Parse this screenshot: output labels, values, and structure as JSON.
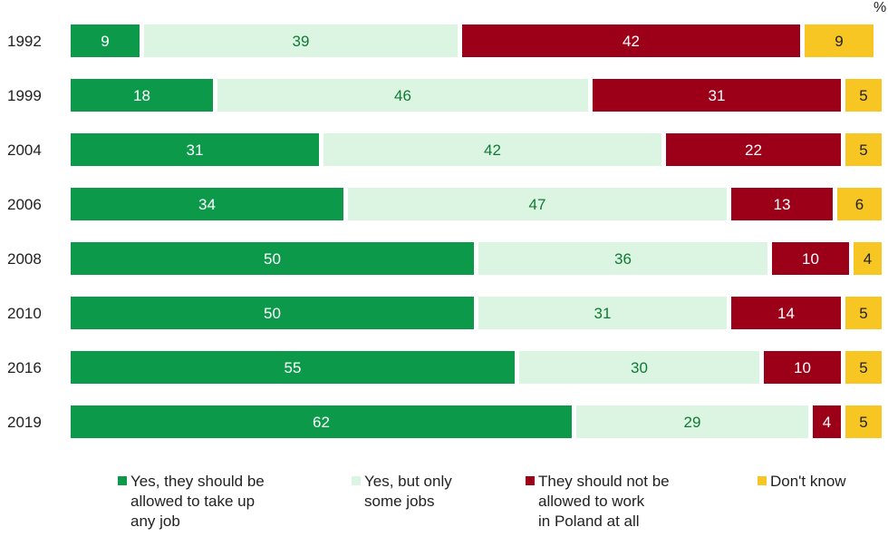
{
  "unit_label": "%",
  "chart_data": {
    "type": "bar",
    "orientation": "horizontal",
    "stacked": true,
    "categories": [
      "1992",
      "1999",
      "2004",
      "2006",
      "2008",
      "2010",
      "2016",
      "2019"
    ],
    "series": [
      {
        "name": "Yes, they should be allowed to take up any job",
        "color": "#0c9a4a",
        "label_color": "#ffffff",
        "values": [
          9,
          18,
          31,
          34,
          50,
          50,
          55,
          62
        ]
      },
      {
        "name": "Yes, but only some jobs",
        "color": "#dcf5e2",
        "label_color": "#0f7a35",
        "values": [
          39,
          46,
          42,
          47,
          36,
          31,
          30,
          29
        ]
      },
      {
        "name": "They should not be allowed to work in Poland at all",
        "color": "#9c0019",
        "label_color": "#ffffff",
        "values": [
          42,
          31,
          22,
          13,
          10,
          14,
          10,
          4
        ]
      },
      {
        "name": "Don't know",
        "color": "#f7c623",
        "label_color": "#222222",
        "values": [
          9,
          5,
          5,
          6,
          4,
          5,
          5,
          5
        ]
      }
    ],
    "xlim": [
      0,
      100
    ],
    "grid": false,
    "legend_position": "bottom"
  },
  "legend": [
    {
      "lines": [
        "Yes, they should be",
        "allowed to take up",
        "any job"
      ]
    },
    {
      "lines": [
        "Yes, but only",
        "some jobs"
      ]
    },
    {
      "lines": [
        "They should not be",
        "allowed to work",
        "in Poland at all"
      ]
    },
    {
      "lines": [
        "Don't know"
      ]
    }
  ]
}
